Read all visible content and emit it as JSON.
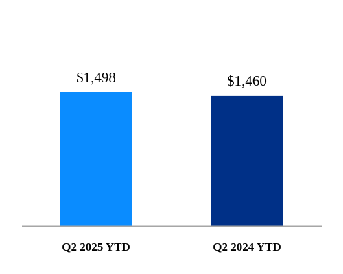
{
  "chart_data": {
    "type": "bar",
    "categories": [
      "Q2 2025 YTD",
      "Q2 2024 YTD"
    ],
    "values": [
      1498,
      1460
    ],
    "data_labels": [
      "$1,498",
      "$1,460"
    ],
    "colors": [
      "#0a8cff",
      "#003087"
    ],
    "axis_color": "#a6a6a6",
    "title": "",
    "xlabel": "",
    "ylabel": "",
    "ylim": [
      0,
      2350
    ],
    "grid": false,
    "legend": "none"
  }
}
